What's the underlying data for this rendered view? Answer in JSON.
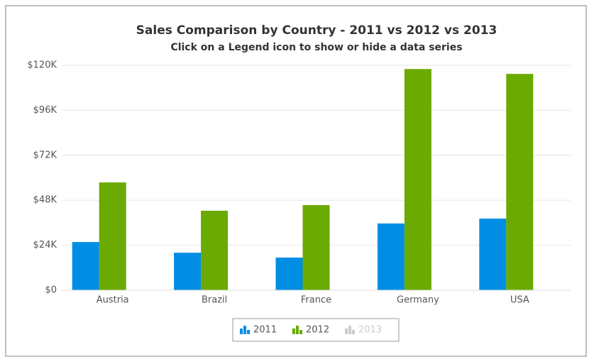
{
  "chart_data": {
    "type": "bar",
    "title": "Sales Comparison by Country - 2011 vs 2012 vs 2013",
    "subtitle": "Click on a Legend icon to show or hide a data series",
    "categories": [
      "Austria",
      "Brazil",
      "France",
      "Germany",
      "USA"
    ],
    "series": [
      {
        "name": "2011",
        "color": "#008ee4",
        "visible": true,
        "values": [
          25700,
          20000,
          17400,
          35600,
          38200
        ]
      },
      {
        "name": "2012",
        "color": "#6baa01",
        "visible": true,
        "values": [
          57500,
          42400,
          45400,
          118000,
          115400
        ]
      },
      {
        "name": "2013",
        "color": "#cccccc",
        "visible": false,
        "values": [
          null,
          null,
          null,
          null,
          null
        ]
      }
    ],
    "ylim": [
      0,
      120000
    ],
    "yticks": [
      {
        "value": 0,
        "label": "$0"
      },
      {
        "value": 24000,
        "label": "$24K"
      },
      {
        "value": 48000,
        "label": "$48K"
      },
      {
        "value": 72000,
        "label": "$72K"
      },
      {
        "value": 96000,
        "label": "$96K"
      },
      {
        "value": 120000,
        "label": "$120K"
      }
    ],
    "grid": true
  }
}
